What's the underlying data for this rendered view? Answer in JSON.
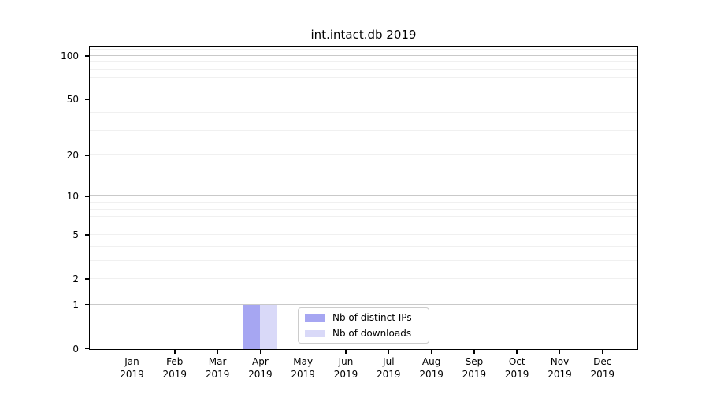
{
  "chart_data": {
    "type": "bar",
    "title": "int.intact.db 2019",
    "categories": [
      "Jan",
      "Feb",
      "Mar",
      "Apr",
      "May",
      "Jun",
      "Jul",
      "Aug",
      "Sep",
      "Oct",
      "Nov",
      "Dec"
    ],
    "category_sublabel": "2019",
    "series": [
      {
        "name": "Nb of distinct IPs",
        "color": "#a6a6f2",
        "values": [
          0,
          0,
          0,
          1,
          0,
          0,
          0,
          0,
          0,
          0,
          0,
          0
        ]
      },
      {
        "name": "Nb of downloads",
        "color": "#d9d9f8",
        "values": [
          0,
          0,
          0,
          1,
          0,
          0,
          0,
          0,
          0,
          0,
          0,
          0
        ]
      }
    ],
    "xlabel": "",
    "ylabel": "",
    "yscale": "log1p",
    "ylim": [
      0,
      113.9
    ],
    "yticks": [
      0,
      1,
      2,
      5,
      10,
      20,
      50,
      100
    ],
    "major_gridlines": [
      1,
      10,
      100
    ],
    "minor_gridlines": [
      2,
      3,
      4,
      5,
      6,
      7,
      8,
      9,
      20,
      30,
      40,
      50,
      60,
      70,
      80,
      90,
      110
    ],
    "grid": "horizontal",
    "legend": {
      "position": "lower center",
      "entries": [
        "Nb of distinct IPs",
        "Nb of downloads"
      ]
    },
    "colors": {
      "spine": "#000000",
      "major_grid": "#c9c9c9",
      "minor_grid": "#f0f0f0",
      "legend_border": "#cccccc",
      "background": "#ffffff"
    }
  }
}
